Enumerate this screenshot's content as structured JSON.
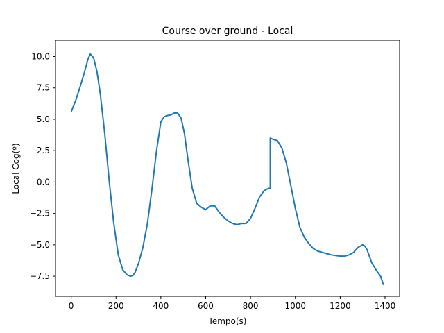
{
  "chart_data": {
    "type": "line",
    "title": "Course over ground - Local",
    "xlabel": "Tempo(s)",
    "ylabel": "Local Cog(º)",
    "xlim": [
      -70,
      1465
    ],
    "ylim": [
      -9.1,
      11.3
    ],
    "xticks": [
      0,
      200,
      400,
      600,
      800,
      1000,
      1200,
      1400
    ],
    "xtick_labels": [
      "0",
      "200",
      "400",
      "600",
      "800",
      "1000",
      "1200",
      "1400"
    ],
    "yticks": [
      -7.5,
      -5.0,
      -2.5,
      0.0,
      2.5,
      5.0,
      7.5,
      10.0
    ],
    "ytick_labels": [
      "−7.5",
      "−5.0",
      "−2.5",
      "0.0",
      "2.5",
      "5.0",
      "7.5",
      "10.0"
    ],
    "grid": false,
    "series": [
      {
        "color": "#1f77b4",
        "x": [
          0,
          20,
          40,
          60,
          75,
          85,
          100,
          115,
          130,
          150,
          170,
          190,
          210,
          230,
          250,
          265,
          275,
          285,
          300,
          320,
          340,
          360,
          380,
          400,
          415,
          430,
          445,
          460,
          475,
          490,
          505,
          520,
          540,
          560,
          580,
          600,
          620,
          640,
          660,
          680,
          700,
          720,
          740,
          760,
          780,
          800,
          820,
          840,
          860,
          880,
          888,
          888,
          900,
          920,
          940,
          960,
          980,
          1000,
          1020,
          1040,
          1060,
          1080,
          1100,
          1120,
          1140,
          1160,
          1180,
          1200,
          1220,
          1240,
          1260,
          1280,
          1300,
          1310,
          1320,
          1340,
          1360,
          1380,
          1393
        ],
        "y": [
          5.6,
          6.5,
          7.6,
          8.8,
          9.8,
          10.2,
          9.9,
          8.8,
          7.0,
          3.8,
          0.0,
          -3.3,
          -5.8,
          -7.0,
          -7.4,
          -7.5,
          -7.45,
          -7.2,
          -6.5,
          -5.2,
          -3.3,
          -0.6,
          2.4,
          4.8,
          5.2,
          5.3,
          5.35,
          5.5,
          5.5,
          5.1,
          3.9,
          1.9,
          -0.5,
          -1.7,
          -2.0,
          -2.2,
          -1.9,
          -1.9,
          -2.4,
          -2.8,
          -3.1,
          -3.3,
          -3.4,
          -3.3,
          -3.3,
          -2.9,
          -2.1,
          -1.2,
          -0.7,
          -0.5,
          -0.5,
          3.5,
          3.4,
          3.3,
          2.7,
          1.5,
          -0.3,
          -2.1,
          -3.6,
          -4.4,
          -4.9,
          -5.3,
          -5.5,
          -5.6,
          -5.7,
          -5.8,
          -5.85,
          -5.9,
          -5.9,
          -5.8,
          -5.6,
          -5.2,
          -5.0,
          -5.1,
          -5.4,
          -6.4,
          -7.0,
          -7.5,
          -8.2
        ]
      }
    ]
  }
}
